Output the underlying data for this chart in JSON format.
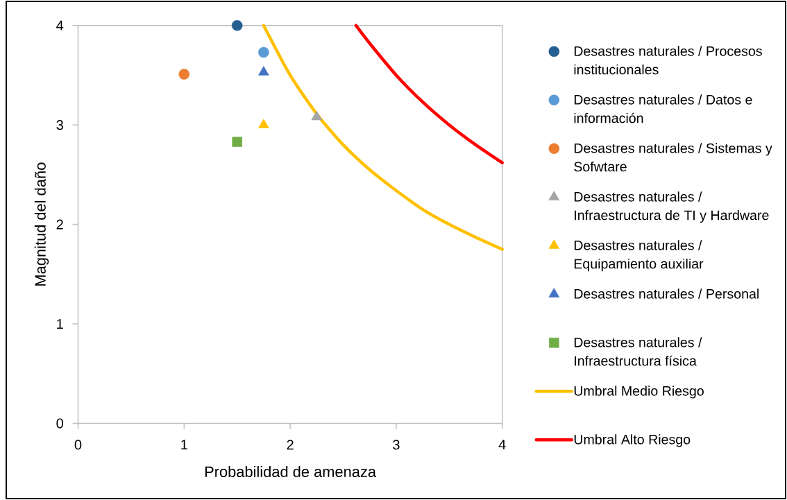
{
  "chart_data": {
    "type": "scatter",
    "xlabel": "Probabilidad de amenaza",
    "ylabel": "Magnitud del daño",
    "xlim": [
      0,
      4
    ],
    "ylim": [
      0,
      4
    ],
    "xticks": [
      0,
      1,
      2,
      3,
      4
    ],
    "yticks": [
      0,
      1,
      2,
      3,
      4
    ],
    "legend": "right",
    "series": [
      {
        "name": "Desastres naturales / Procesos institucionales",
        "color": "#255e91",
        "marker": "circle",
        "x": [
          1.5
        ],
        "values": [
          4
        ]
      },
      {
        "name": "Desastres naturales / Datos e información",
        "color": "#5b9bd5",
        "marker": "circle",
        "x": [
          1.75
        ],
        "values": [
          3.73
        ]
      },
      {
        "name": "Desastres naturales / Sistemas y Sofwtare",
        "color": "#ed7d31",
        "marker": "circle",
        "x": [
          1.0
        ],
        "values": [
          3.51
        ]
      },
      {
        "name": "Desastres naturales / Infraestructura de TI y Hardware",
        "color": "#a5a5a5",
        "marker": "triangle",
        "x": [
          2.25
        ],
        "values": [
          3.08
        ]
      },
      {
        "name": "Desastres naturales / Equipamiento auxiliar",
        "color": "#ffc000",
        "marker": "triangle",
        "x": [
          1.75
        ],
        "values": [
          3.0
        ]
      },
      {
        "name": "Desastres naturales / Personal",
        "color": "#4472c4",
        "marker": "triangle",
        "x": [
          1.75
        ],
        "values": [
          3.53
        ]
      },
      {
        "name": "Desastres naturales / Infraestructura física",
        "color": "#70ad47",
        "marker": "square",
        "x": [
          1.5
        ],
        "values": [
          2.83
        ]
      },
      {
        "name": "Umbral Medio Riesgo",
        "type": "line",
        "color": "#ffc000",
        "x": [
          1.75,
          2,
          2.25,
          2.5,
          2.75,
          3,
          3.25,
          3.5,
          3.75,
          4
        ],
        "values": [
          4,
          3.5,
          3.11,
          2.8,
          2.55,
          2.34,
          2.15,
          2.0,
          1.87,
          1.75
        ]
      },
      {
        "name": "Umbral Alto Riesgo",
        "type": "line",
        "color": "#ff0000",
        "x": [
          2.62,
          2.75,
          3,
          3.25,
          3.5,
          3.75,
          4
        ],
        "values": [
          4,
          3.82,
          3.5,
          3.23,
          3.0,
          2.8,
          2.62
        ]
      }
    ]
  }
}
